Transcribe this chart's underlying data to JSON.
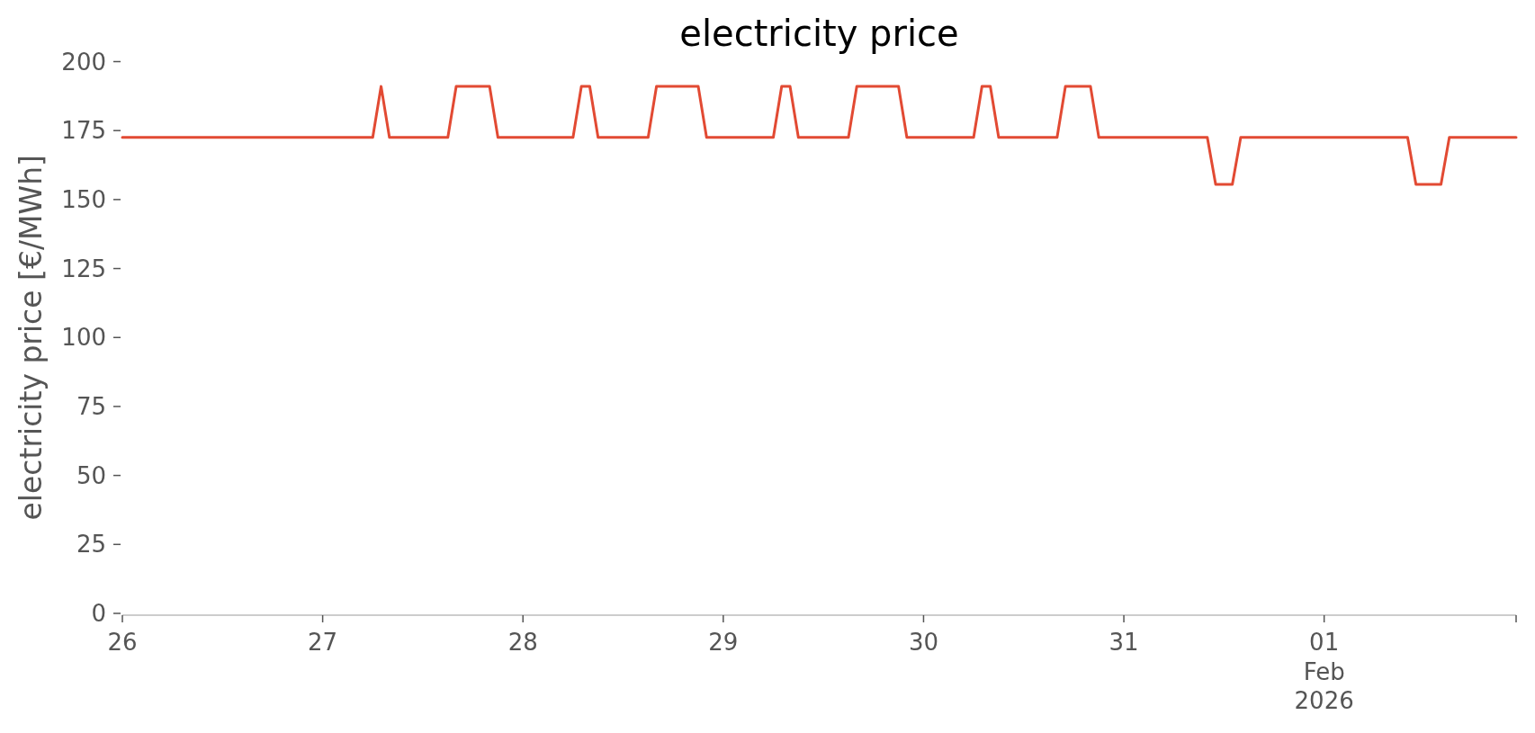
{
  "chart_data": {
    "type": "line",
    "title": "electricity price",
    "ylabel": "electricity price [€/MWh]",
    "x": [
      "2026-01-26T00:00",
      "2026-01-27T06:00",
      "2026-01-27T07:00",
      "2026-01-27T08:00",
      "2026-01-27T15:00",
      "2026-01-27T16:00",
      "2026-01-27T20:00",
      "2026-01-27T21:00",
      "2026-01-28T06:00",
      "2026-01-28T07:00",
      "2026-01-28T08:00",
      "2026-01-28T09:00",
      "2026-01-28T15:00",
      "2026-01-28T16:00",
      "2026-01-28T21:00",
      "2026-01-28T22:00",
      "2026-01-29T06:00",
      "2026-01-29T07:00",
      "2026-01-29T08:00",
      "2026-01-29T09:00",
      "2026-01-29T15:00",
      "2026-01-29T16:00",
      "2026-01-29T21:00",
      "2026-01-29T22:00",
      "2026-01-30T06:00",
      "2026-01-30T07:00",
      "2026-01-30T08:00",
      "2026-01-30T09:00",
      "2026-01-30T16:00",
      "2026-01-30T17:00",
      "2026-01-30T20:00",
      "2026-01-30T21:00",
      "2026-01-31T10:00",
      "2026-01-31T11:00",
      "2026-01-31T13:00",
      "2026-01-31T14:00",
      "2026-02-01T10:00",
      "2026-02-01T11:00",
      "2026-02-01T14:00",
      "2026-02-01T15:00",
      "2026-02-01T23:00"
    ],
    "series": [
      {
        "color": "#e24a33",
        "values": [
          172.5,
          172.5,
          191,
          172.5,
          172.5,
          191,
          191,
          172.5,
          172.5,
          191,
          191,
          172.5,
          172.5,
          191,
          191,
          172.5,
          172.5,
          191,
          191,
          172.5,
          172.5,
          191,
          191,
          172.5,
          172.5,
          191,
          191,
          172.5,
          172.5,
          191,
          191,
          172.5,
          172.5,
          155.5,
          155.5,
          172.5,
          172.5,
          155.5,
          155.5,
          172.5,
          172.5
        ]
      }
    ],
    "xlim": [
      "2026-01-26T00:00",
      "2026-02-01T23:00"
    ],
    "xticks": [
      {
        "value": "2026-01-26",
        "label": "26"
      },
      {
        "value": "2026-01-27",
        "label": "27"
      },
      {
        "value": "2026-01-28",
        "label": "28"
      },
      {
        "value": "2026-01-29",
        "label": "29"
      },
      {
        "value": "2026-01-30",
        "label": "30"
      },
      {
        "value": "2026-01-31",
        "label": "31"
      },
      {
        "value": "2026-02-01",
        "label": "01\nFeb\n2026"
      },
      {
        "value": "2026-02-01T23:00",
        "label": null
      }
    ],
    "ylim": [
      0,
      200
    ],
    "yticks": [
      0,
      25,
      50,
      75,
      100,
      125,
      150,
      175,
      200
    ],
    "marker": "none",
    "line_style": "solid"
  }
}
